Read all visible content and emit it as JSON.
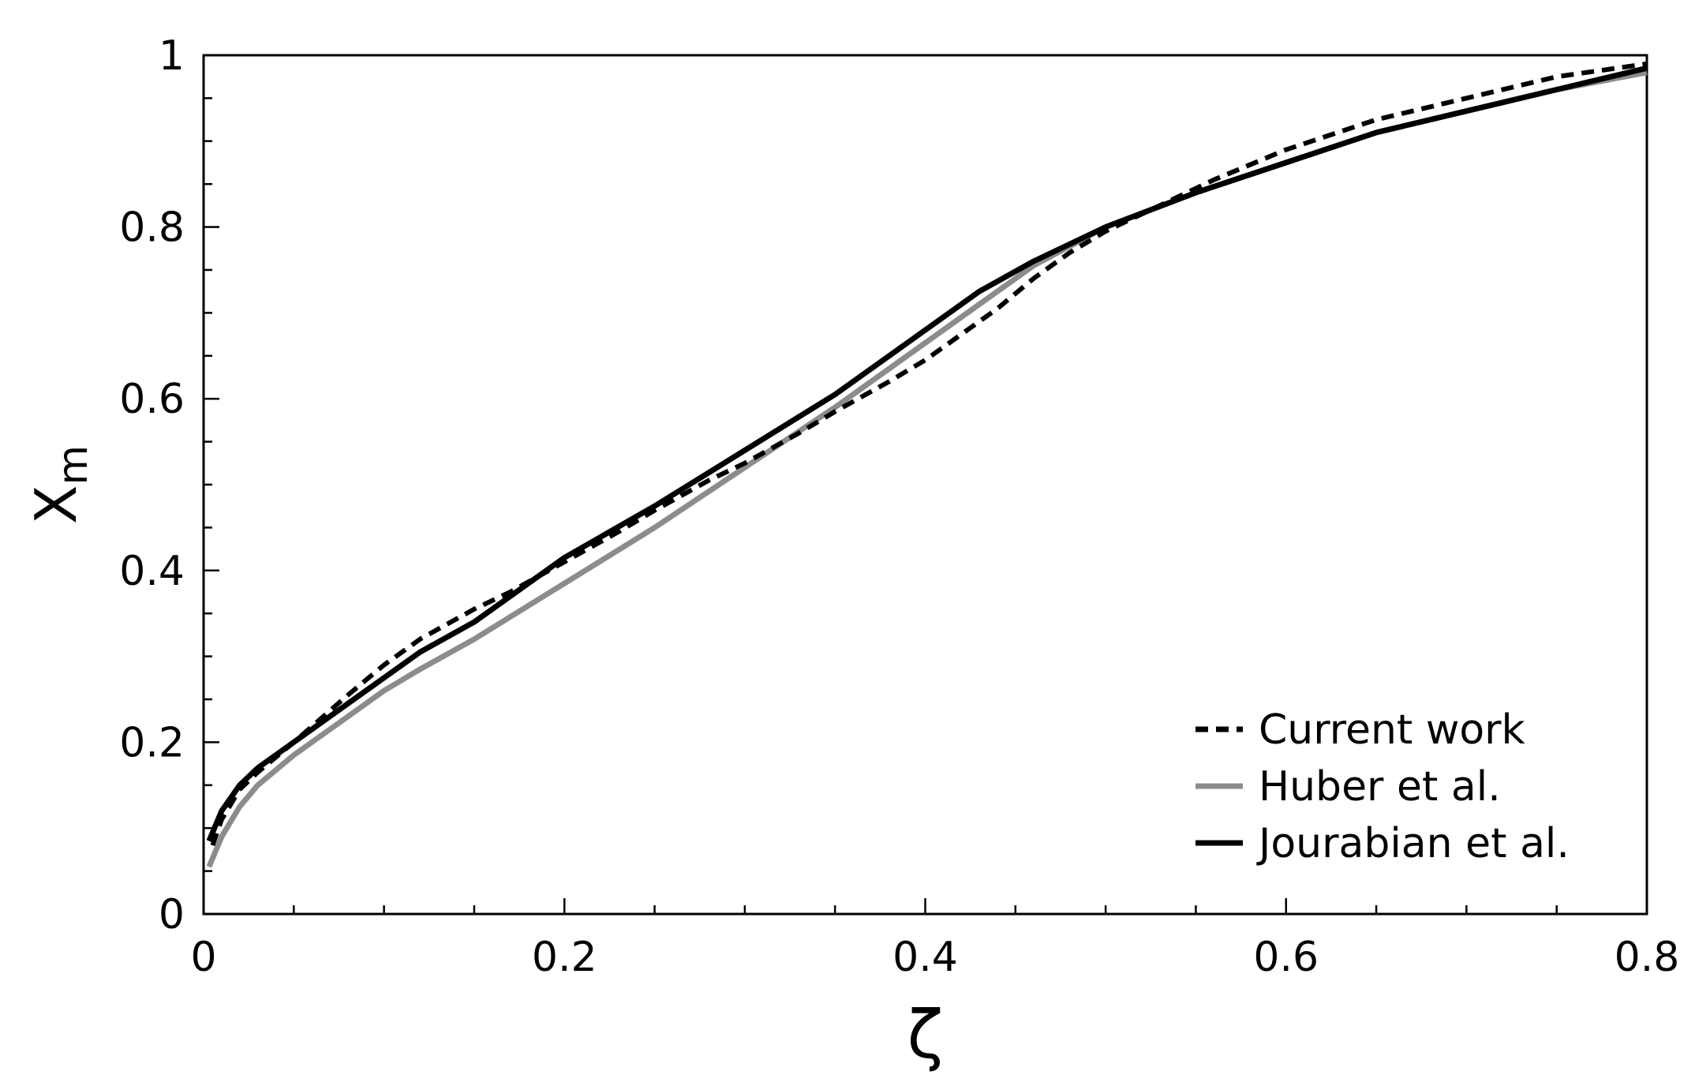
{
  "chart_data": {
    "type": "line",
    "title": "",
    "xlabel": "ζ",
    "ylabel": "X",
    "ylabel_subscript": "m",
    "xlim": [
      0,
      0.8
    ],
    "ylim": [
      0,
      1
    ],
    "x_ticks": [
      0,
      0.2,
      0.4,
      0.6,
      0.8
    ],
    "x_tick_labels": [
      "0",
      "0.2",
      "0.4",
      "0.6",
      "0.8"
    ],
    "y_ticks": [
      0,
      0.2,
      0.4,
      0.6,
      0.8,
      1
    ],
    "y_tick_labels": [
      "0",
      "0.2",
      "0.4",
      "0.6",
      "0.8",
      "1"
    ],
    "grid": false,
    "legend_position": "bottom-right",
    "series": [
      {
        "name": "Current work",
        "color": "#000000",
        "style": "dashed",
        "x": [
          0.005,
          0.01,
          0.02,
          0.03,
          0.05,
          0.08,
          0.1,
          0.12,
          0.15,
          0.17,
          0.2,
          0.23,
          0.25,
          0.28,
          0.3,
          0.33,
          0.35,
          0.38,
          0.4,
          0.42,
          0.44,
          0.46,
          0.48,
          0.5,
          0.53,
          0.56,
          0.6,
          0.65,
          0.7,
          0.75,
          0.8
        ],
        "y": [
          0.08,
          0.11,
          0.145,
          0.165,
          0.2,
          0.255,
          0.29,
          0.32,
          0.355,
          0.375,
          0.41,
          0.445,
          0.47,
          0.505,
          0.525,
          0.56,
          0.585,
          0.62,
          0.645,
          0.675,
          0.705,
          0.74,
          0.77,
          0.795,
          0.825,
          0.855,
          0.89,
          0.925,
          0.95,
          0.975,
          0.99
        ]
      },
      {
        "name": "Huber et al.",
        "color": "#8c8c8c",
        "style": "solid",
        "x": [
          0.003,
          0.01,
          0.02,
          0.03,
          0.05,
          0.08,
          0.1,
          0.12,
          0.15,
          0.2,
          0.25,
          0.3,
          0.35,
          0.4,
          0.43,
          0.46,
          0.5,
          0.55,
          0.6,
          0.65,
          0.7,
          0.75,
          0.8
        ],
        "y": [
          0.055,
          0.09,
          0.125,
          0.15,
          0.185,
          0.23,
          0.26,
          0.285,
          0.32,
          0.385,
          0.45,
          0.52,
          0.59,
          0.665,
          0.71,
          0.755,
          0.8,
          0.84,
          0.875,
          0.91,
          0.935,
          0.96,
          0.98
        ]
      },
      {
        "name": "Jourabian et al.",
        "color": "#000000",
        "style": "solid",
        "x": [
          0.003,
          0.01,
          0.02,
          0.03,
          0.05,
          0.08,
          0.1,
          0.12,
          0.15,
          0.2,
          0.25,
          0.3,
          0.35,
          0.4,
          0.43,
          0.46,
          0.5,
          0.55,
          0.6,
          0.65,
          0.7,
          0.75,
          0.8
        ],
        "y": [
          0.085,
          0.12,
          0.15,
          0.17,
          0.2,
          0.245,
          0.275,
          0.305,
          0.34,
          0.415,
          0.475,
          0.54,
          0.605,
          0.68,
          0.725,
          0.76,
          0.8,
          0.84,
          0.875,
          0.91,
          0.935,
          0.96,
          0.985
        ]
      }
    ]
  }
}
